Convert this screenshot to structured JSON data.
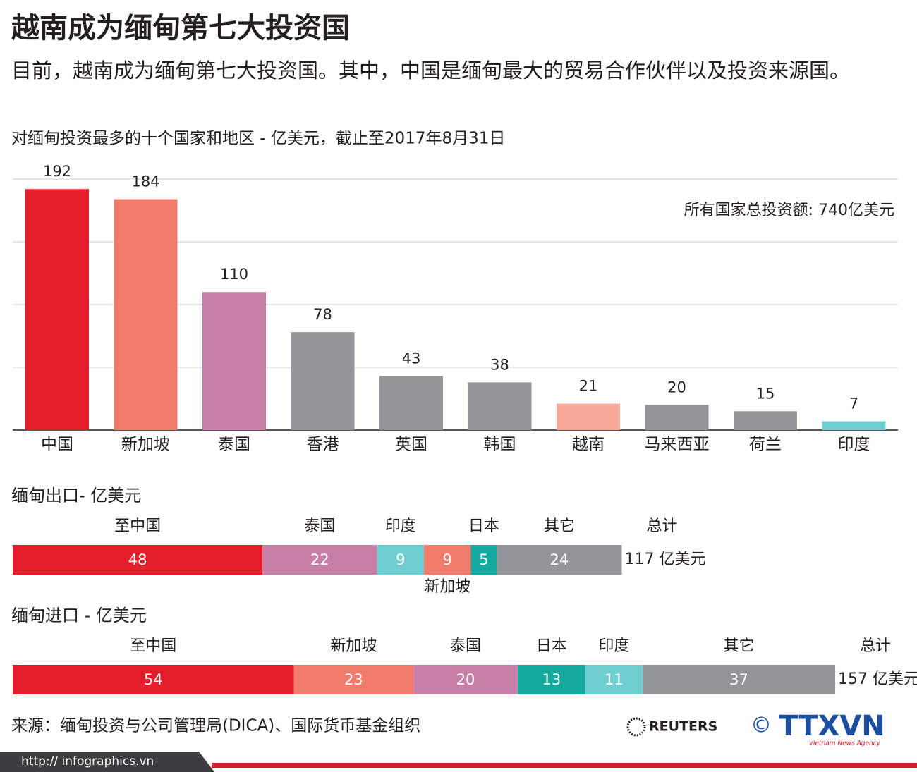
{
  "header": {
    "title": "越南成为缅甸第七大投资国",
    "subtitle": "目前，越南成为缅甸第七大投资国。其中，中国是缅甸最大的贸易合作伙伴以及投资来源国。"
  },
  "chart_data": [
    {
      "type": "bar",
      "title": "对缅甸投资最多的十个国家和地区 - 亿美元，截止至2017年8月31日",
      "annotation": "所有国家总投资额: 740亿美元",
      "categories": [
        "中国",
        "新加坡",
        "泰国",
        "香港",
        "英国",
        "韩国",
        "越南",
        "马来西亚",
        "荷兰",
        "印度"
      ],
      "values": [
        192,
        184,
        110,
        78,
        43,
        38,
        21,
        20,
        15,
        7
      ],
      "colors": [
        "#e31e2b",
        "#f07b6b",
        "#c77fa8",
        "#939598",
        "#939598",
        "#939598",
        "#f6a898",
        "#939598",
        "#939598",
        "#6fcfd0"
      ],
      "ylim": [
        0,
        200
      ],
      "yticks": [
        0,
        50,
        100,
        150,
        200
      ],
      "grid": true
    },
    {
      "type": "stacked-bar",
      "title": "缅甸出口- 亿美元",
      "categories": [
        "至中国",
        "泰国",
        "印度",
        "新加坡",
        "日本",
        "其它"
      ],
      "values": [
        48,
        22,
        9,
        9,
        5,
        24
      ],
      "colors": [
        "#e31e2b",
        "#c77fa8",
        "#6fcfd0",
        "#f07b6b",
        "#14a89e",
        "#939598"
      ],
      "total_title": "总计",
      "total": {
        "value": 117,
        "label": "117 亿美元"
      }
    },
    {
      "type": "stacked-bar",
      "title": "缅甸进口 - 亿美元",
      "categories": [
        "至中国",
        "新加坡",
        "泰国",
        "日本",
        "印度",
        "其它"
      ],
      "values": [
        54,
        23,
        20,
        13,
        11,
        37
      ],
      "colors": [
        "#e31e2b",
        "#f07b6b",
        "#c77fa8",
        "#14a89e",
        "#6fcfd0",
        "#939598"
      ],
      "total_title": "总计",
      "total": {
        "value": 157,
        "label": "157 亿美元"
      }
    }
  ],
  "source": "来源：缅甸投资与公司管理局(DICA)、国际货币基金组织",
  "logos": {
    "reuters": "REUTERS",
    "copyright": "©",
    "ttxvn": "TTXVN",
    "ttxvn_sub": "Vietnam News Agency"
  },
  "footer": "http:// infographics.vn"
}
